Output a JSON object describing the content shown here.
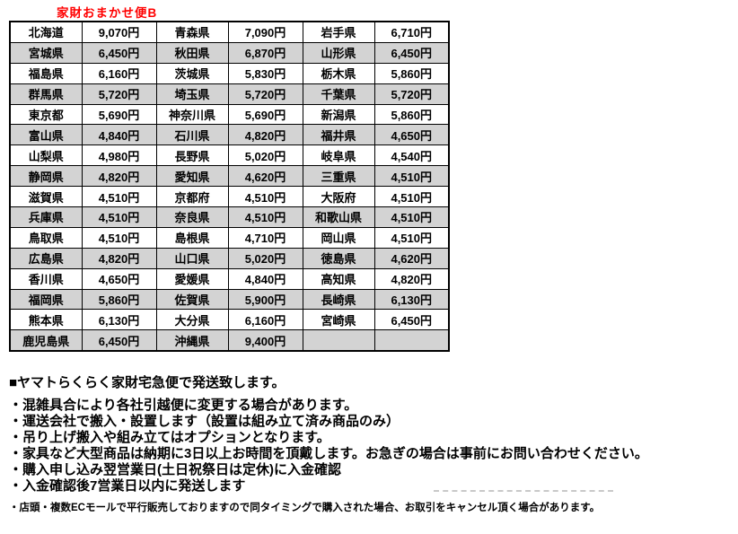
{
  "title": "家財おまかせ便B",
  "colors": {
    "title_red": "#ff0000",
    "row_alt_gray": "#d3d3d3",
    "border_black": "#000000"
  },
  "table": {
    "rows": [
      [
        "北海道",
        "9,070円",
        "青森県",
        "7,090円",
        "岩手県",
        "6,710円"
      ],
      [
        "宮城県",
        "6,450円",
        "秋田県",
        "6,870円",
        "山形県",
        "6,450円"
      ],
      [
        "福島県",
        "6,160円",
        "茨城県",
        "5,830円",
        "栃木県",
        "5,860円"
      ],
      [
        "群馬県",
        "5,720円",
        "埼玉県",
        "5,720円",
        "千葉県",
        "5,720円"
      ],
      [
        "東京都",
        "5,690円",
        "神奈川県",
        "5,690円",
        "新潟県",
        "5,860円"
      ],
      [
        "富山県",
        "4,840円",
        "石川県",
        "4,820円",
        "福井県",
        "4,650円"
      ],
      [
        "山梨県",
        "4,980円",
        "長野県",
        "5,020円",
        "岐阜県",
        "4,540円"
      ],
      [
        "静岡県",
        "4,820円",
        "愛知県",
        "4,620円",
        "三重県",
        "4,510円"
      ],
      [
        "滋賀県",
        "4,510円",
        "京都府",
        "4,510円",
        "大阪府",
        "4,510円"
      ],
      [
        "兵庫県",
        "4,510円",
        "奈良県",
        "4,510円",
        "和歌山県",
        "4,510円"
      ],
      [
        "鳥取県",
        "4,510円",
        "島根県",
        "4,710円",
        "岡山県",
        "4,510円"
      ],
      [
        "広島県",
        "4,820円",
        "山口県",
        "5,020円",
        "徳島県",
        "4,620円"
      ],
      [
        "香川県",
        "4,650円",
        "愛媛県",
        "4,840円",
        "高知県",
        "4,820円"
      ],
      [
        "福岡県",
        "5,860円",
        "佐賀県",
        "5,900円",
        "長崎県",
        "6,130円"
      ],
      [
        "熊本県",
        "6,130円",
        "大分県",
        "6,160円",
        "宮崎県",
        "6,450円"
      ],
      [
        "鹿児島県",
        "6,450円",
        "沖縄県",
        "9,400円",
        "",
        ""
      ]
    ]
  },
  "notes": {
    "heading": "■ヤマトらくらく家財宅急便で発送致します。",
    "bullets": [
      "・混雑具合により各社引越便に変更する場合があります。",
      "・運送会社で搬入・設置します（設置は組み立て済み商品のみ）",
      "・吊り上げ搬入や組み立てはオプションとなります。",
      "・家具など大型商品は納期に3日以上お時間を頂戴します。お急ぎの場合は事前にお問い合わせください。",
      "・購入申し込み翌営業日(土日祝祭日は定休)に入金確認",
      "・入金確認後7営業日以内に発送します"
    ],
    "small_note": "・店頭・複数ECモールで平行販売しておりますので同タイミングで購入された場合、お取引をキャンセル頂く場合があります。"
  }
}
